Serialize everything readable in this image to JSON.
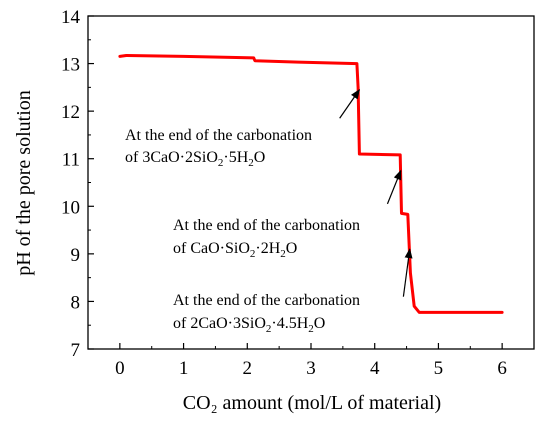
{
  "chart_data": {
    "type": "line",
    "xlabel": "CO₂ amount (mol/L of material)",
    "ylabel": "pH of the pore solution",
    "xlim": [
      -0.5,
      6.5
    ],
    "ylim": [
      7,
      14
    ],
    "xticks": [
      0,
      1,
      2,
      3,
      4,
      5,
      6
    ],
    "yticks": [
      7,
      8,
      9,
      10,
      11,
      12,
      13,
      14
    ],
    "grid": false,
    "legend": "none",
    "series": [
      {
        "color": "#ff0000",
        "points": [
          [
            0.0,
            13.15
          ],
          [
            0.1,
            13.17
          ],
          [
            1.0,
            13.15
          ],
          [
            2.1,
            13.12
          ],
          [
            2.12,
            13.06
          ],
          [
            2.8,
            13.03
          ],
          [
            3.72,
            13.0
          ],
          [
            3.74,
            12.5
          ],
          [
            3.76,
            11.1
          ],
          [
            4.4,
            11.08
          ],
          [
            4.42,
            9.85
          ],
          [
            4.52,
            9.83
          ],
          [
            4.56,
            8.6
          ],
          [
            4.62,
            7.9
          ],
          [
            4.7,
            7.77
          ],
          [
            6.0,
            7.77
          ]
        ]
      }
    ],
    "annotations": [
      {
        "line1": "At the end of the carbonation",
        "line2": [
          "of 3CaO·2SiO",
          "2",
          "·5H",
          "2",
          "O"
        ],
        "arrow_from": [
          3.45,
          11.85
        ],
        "arrow_to": [
          3.76,
          12.45
        ]
      },
      {
        "line1": "At the end of the carbonation",
        "line2": [
          "of CaO·SiO",
          "2",
          "·2H",
          "2",
          "O"
        ],
        "arrow_from": [
          4.2,
          10.05
        ],
        "arrow_to": [
          4.41,
          10.75
        ]
      },
      {
        "line1": "At the end of the carbonation",
        "line2": [
          "of 2CaO·3SiO",
          "2",
          "·4.5H",
          "2",
          "O"
        ],
        "arrow_from": [
          4.45,
          8.1
        ],
        "arrow_to": [
          4.55,
          9.1
        ]
      }
    ]
  }
}
